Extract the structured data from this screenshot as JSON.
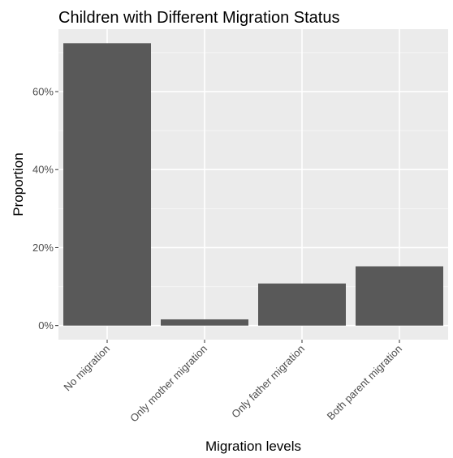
{
  "chart_data": {
    "type": "bar",
    "title": "Children with Different Migration Status",
    "xlabel": "Migration levels",
    "ylabel": "Proportion",
    "categories": [
      "No migration",
      "Only mother migration",
      "Only father migration",
      "Both parent migration"
    ],
    "values": [
      72.4,
      1.6,
      10.8,
      15.2
    ],
    "yticks": [
      0,
      20,
      40,
      60
    ],
    "ytick_labels": [
      "0%",
      "20%",
      "40%",
      "60%"
    ],
    "ylim": [
      -3.6,
      76
    ],
    "grid": true,
    "colors": {
      "bar": "#595959",
      "panel": "#ebebeb",
      "grid_major": "#ffffff",
      "grid_minor": "#f5f5f5",
      "tick": "#333333"
    }
  }
}
